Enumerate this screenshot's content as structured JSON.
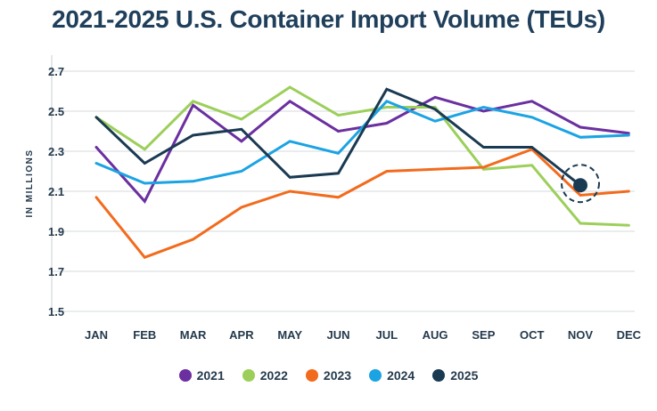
{
  "chart_data": {
    "type": "line",
    "title": "2021-2025 U.S. Container Import Volume (TEUs)",
    "ylabel": "IN MILLIONS",
    "xlabel": "",
    "categories": [
      "JAN",
      "FEB",
      "MAR",
      "APR",
      "MAY",
      "JUN",
      "JUL",
      "AUG",
      "SEP",
      "OCT",
      "NOV",
      "DEC"
    ],
    "yticks": [
      "2.7",
      "2.5",
      "2.3",
      "2.1",
      "1.9",
      "1.7",
      "1.5"
    ],
    "ylim": [
      1.5,
      2.7
    ],
    "grid": true,
    "legend_position": "bottom",
    "series": [
      {
        "name": "2021",
        "color": "#6b2fa0",
        "values": [
          2.32,
          2.05,
          2.53,
          2.35,
          2.55,
          2.4,
          2.44,
          2.57,
          2.5,
          2.55,
          2.42,
          2.39
        ]
      },
      {
        "name": "2022",
        "color": "#9ccf5a",
        "values": [
          2.47,
          2.31,
          2.55,
          2.46,
          2.62,
          2.48,
          2.52,
          2.52,
          2.21,
          2.23,
          1.94,
          1.93
        ]
      },
      {
        "name": "2023",
        "color": "#f26b1d",
        "values": [
          2.07,
          1.77,
          1.86,
          2.02,
          2.1,
          2.07,
          2.2,
          2.21,
          2.22,
          2.31,
          2.08,
          2.1
        ]
      },
      {
        "name": "2024",
        "color": "#1ba3e3",
        "values": [
          2.24,
          2.14,
          2.15,
          2.2,
          2.35,
          2.29,
          2.55,
          2.45,
          2.52,
          2.47,
          2.37,
          2.38
        ]
      },
      {
        "name": "2025",
        "color": "#1a3a52",
        "values": [
          2.47,
          2.24,
          2.38,
          2.41,
          2.17,
          2.19,
          2.61,
          2.51,
          2.32,
          2.32,
          2.13,
          null
        ]
      }
    ],
    "highlight": {
      "series": "2025",
      "category": "NOV",
      "value": 2.13
    }
  }
}
